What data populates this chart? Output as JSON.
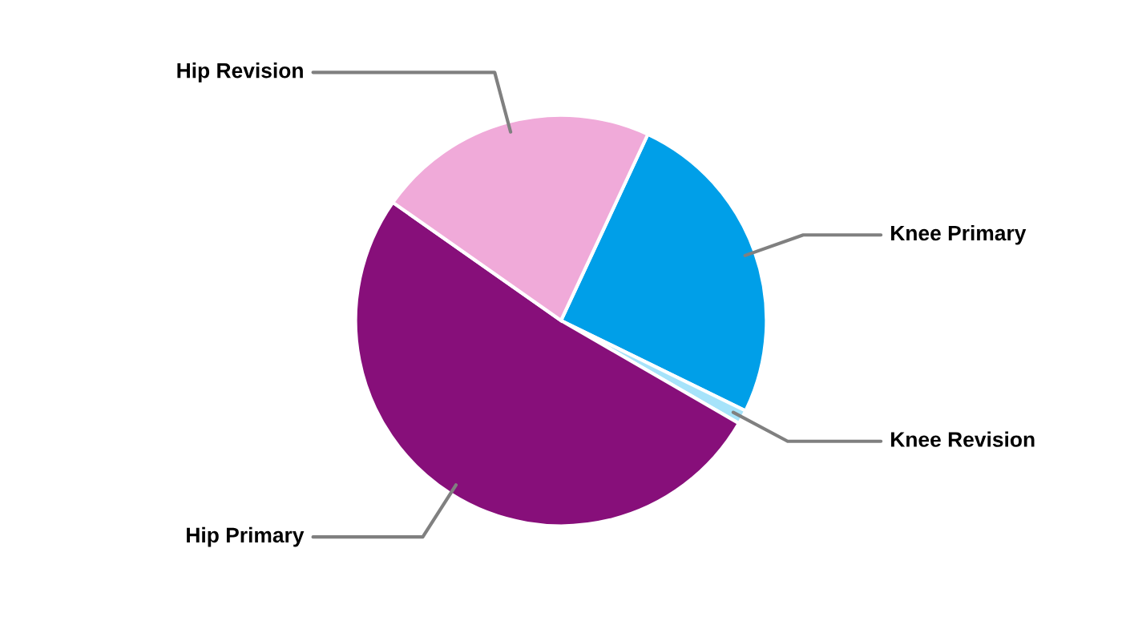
{
  "chart_data": {
    "type": "pie",
    "categories": [
      "Knee Primary",
      "Knee Revision",
      "Hip Primary",
      "Hip Revision"
    ],
    "values": [
      25.3,
      1.1,
      51.4,
      22.2
    ],
    "colors": [
      "#009fe8",
      "#a6e3fa",
      "#870f7a",
      "#f0aad9"
    ]
  }
}
